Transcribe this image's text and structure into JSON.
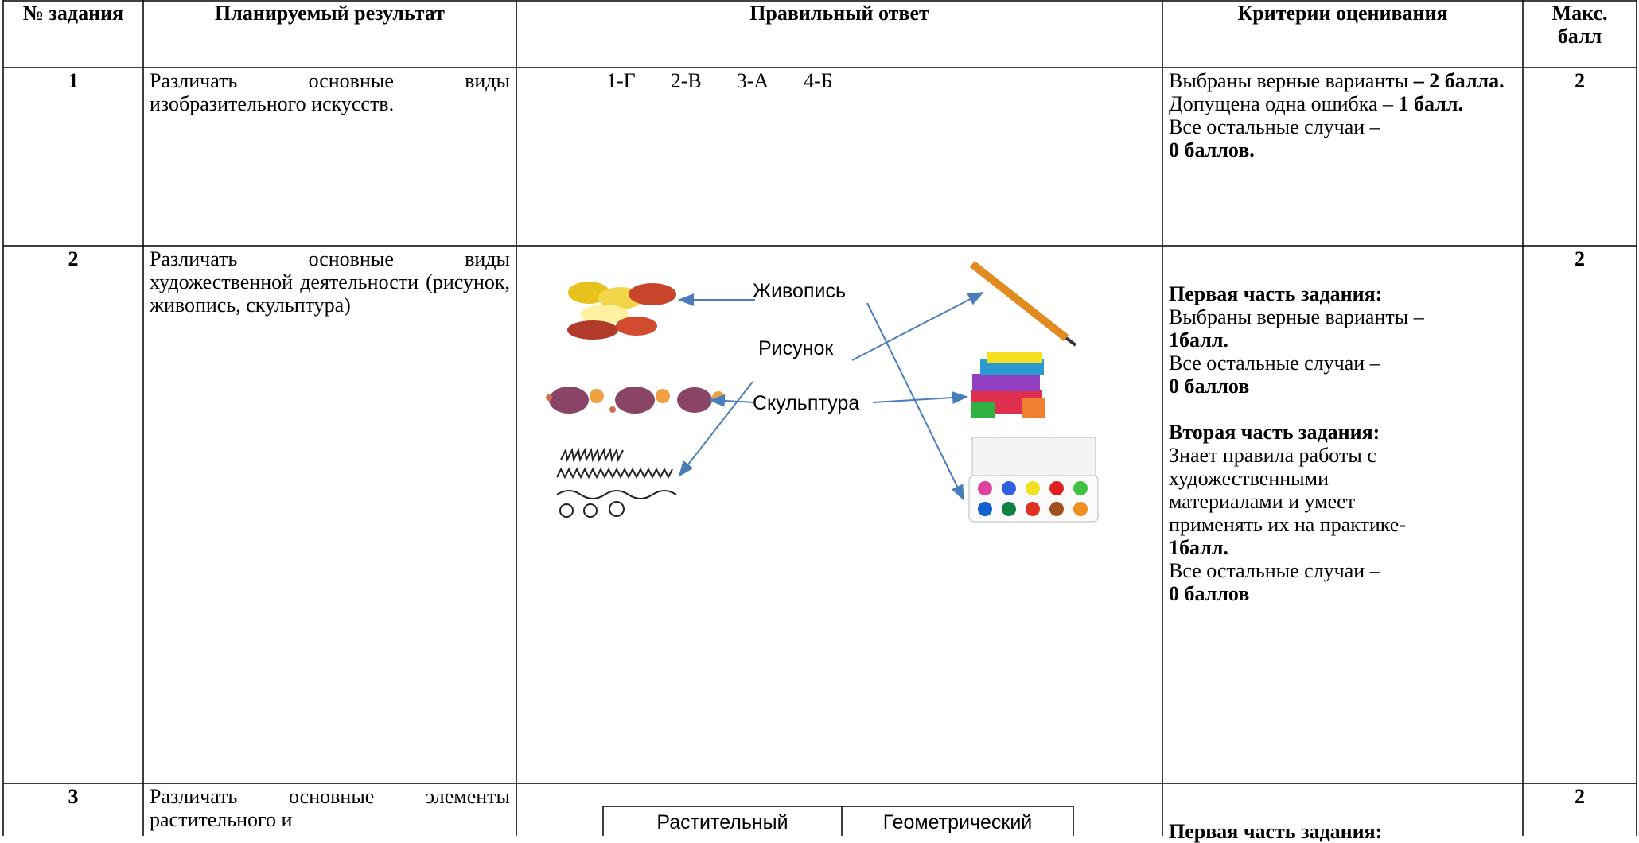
{
  "header": [
    "№ задания",
    "Планируемый результат",
    "Правильный ответ",
    "Критерии  оценивания",
    "Макс. балл"
  ],
  "rows": [
    {
      "number": "1",
      "result": "Различать основные виды изобразительного искусств.",
      "answer": [
        "1-Г",
        "2-В",
        "3-А",
        "4-Б"
      ],
      "criteria": [
        [
          [
            {
              "text": "Выбраны верные варианты ",
              "bold": false
            },
            {
              "text": "– 2 балла.",
              "bold": true
            }
          ],
          [
            {
              "text": "Допущена одна ошибка – ",
              "bold": false
            },
            {
              "text": "1 балл.",
              "bold": true
            }
          ],
          [
            {
              "text": "Все остальные случаи –",
              "bold": false
            }
          ],
          [
            {
              "text": "0 баллов.",
              "bold": true
            }
          ]
        ]
      ],
      "max": "2"
    },
    {
      "number": "2",
      "result": "Различать основные виды художественной деятельности (рисунок, живопись, скульптура)",
      "answer": [
        "Живопись",
        "Рисунок",
        "Скульптура"
      ],
      "criteria": [
        [
          [
            {
              "text": "Первая часть задания:",
              "bold": true
            }
          ],
          [
            {
              "text": "Выбраны верные варианты –",
              "bold": false
            }
          ],
          [
            {
              "text": "1балл.",
              "bold": true
            }
          ],
          [
            {
              "text": "Все остальные случаи –",
              "bold": false
            }
          ],
          [
            {
              "text": "0 баллов",
              "bold": true
            }
          ]
        ],
        [
          [
            {
              "text": "Вторая часть задания:",
              "bold": true
            }
          ],
          [
            {
              "text": "Знает  правила работы с",
              "bold": false
            }
          ],
          [
            {
              "text": "художественными",
              "bold": false
            }
          ],
          [
            {
              "text": "материалами   и умеет",
              "bold": false
            }
          ],
          [
            {
              "text": "применять их на практике-",
              "bold": false
            }
          ],
          [
            {
              "text": "1балл.",
              "bold": true
            }
          ],
          [
            {
              "text": "Все остальные случаи –",
              "bold": false
            }
          ],
          [
            {
              "text": "0 баллов",
              "bold": true
            }
          ]
        ]
      ],
      "max": "2"
    },
    {
      "number": "3",
      "result": "Различать основные элементы растительного и",
      "answer": [
        "Растительный",
        "Геометрический"
      ],
      "criteria": [
        [
          [
            {
              "text": "Первая часть задания:",
              "bold": true
            }
          ]
        ]
      ],
      "max": "2"
    }
  ]
}
